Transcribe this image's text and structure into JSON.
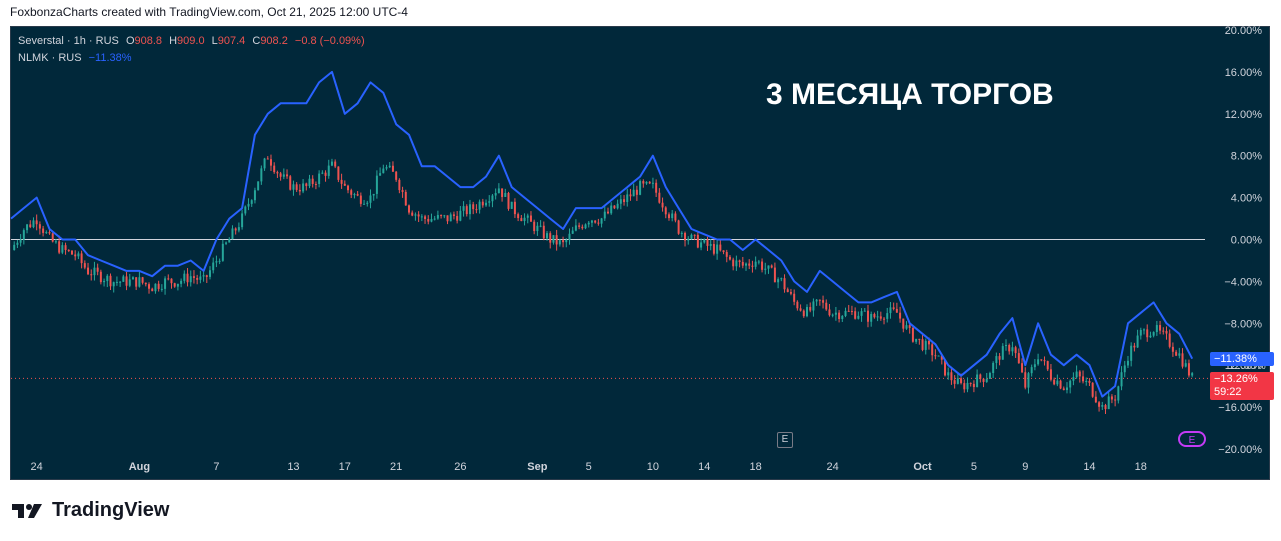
{
  "header": {
    "credit": "FoxbonzaCharts created with TradingView.com, Oct 21, 2025 12:00 UTC-4"
  },
  "legend": {
    "main_symbol": "Severstal · 1h · RUS",
    "o_label": "O",
    "o_value": "908.8",
    "h_label": "H",
    "h_value": "909.0",
    "l_label": "L",
    "l_value": "907.4",
    "c_label": "C",
    "c_value": "908.2",
    "change": "−0.8 (−0.09%)",
    "compare_symbol": "NLMK · RUS",
    "compare_value": "−11.38%"
  },
  "annotation": "3 МЕСЯЦА ТОРГОВ",
  "footer": {
    "brand": "TradingView"
  },
  "price_badges": {
    "compare": "−11.38%",
    "main": "−13.26%",
    "countdown": "59:22",
    "hidden_tick": "−12.00%"
  },
  "event_markers": [
    "E",
    "E"
  ],
  "colors": {
    "background": "#01283a",
    "nlmk_line": "#2962ff",
    "candle_up": "#26a69a",
    "candle_down": "#ef5350",
    "zero_line": "#d1d4dc"
  },
  "chart_data": {
    "type": "line",
    "title": "",
    "y_axis": {
      "unit": "%",
      "range": [
        -20,
        20
      ],
      "ticks": [
        20,
        16,
        12,
        8,
        4,
        0,
        -4,
        -8,
        -12,
        -16,
        -20
      ],
      "tick_labels": [
        "20.00%",
        "16.00%",
        "12.00%",
        "8.00%",
        "4.00%",
        "0.00%",
        "−4.00%",
        "−8.00%",
        "−12.00%",
        "−16.00%",
        "−20.00%"
      ]
    },
    "x_axis": {
      "range_days": [
        0,
        93
      ],
      "ticks": [
        {
          "day": 2,
          "label": "24"
        },
        {
          "day": 10,
          "label": "Aug"
        },
        {
          "day": 16,
          "label": "7"
        },
        {
          "day": 22,
          "label": "13"
        },
        {
          "day": 26,
          "label": "17"
        },
        {
          "day": 30,
          "label": "21"
        },
        {
          "day": 35,
          "label": "26"
        },
        {
          "day": 41,
          "label": "Sep"
        },
        {
          "day": 45,
          "label": "5"
        },
        {
          "day": 50,
          "label": "10"
        },
        {
          "day": 54,
          "label": "14"
        },
        {
          "day": 58,
          "label": "18"
        },
        {
          "day": 64,
          "label": "24"
        },
        {
          "day": 71,
          "label": "Oct"
        },
        {
          "day": 75,
          "label": "5"
        },
        {
          "day": 79,
          "label": "9"
        },
        {
          "day": 84,
          "label": "14"
        },
        {
          "day": 88,
          "label": "18"
        }
      ]
    },
    "grid": false,
    "series": [
      {
        "name": "NLMK · RUS",
        "style": "line",
        "points": [
          [
            0,
            2
          ],
          [
            1,
            3
          ],
          [
            2,
            4
          ],
          [
            3,
            1
          ],
          [
            4,
            0
          ],
          [
            5,
            0
          ],
          [
            6,
            -1.5
          ],
          [
            7,
            -2
          ],
          [
            8,
            -2.5
          ],
          [
            9,
            -3
          ],
          [
            10,
            -3
          ],
          [
            11,
            -3.5
          ],
          [
            12,
            -2.5
          ],
          [
            13,
            -2.5
          ],
          [
            14,
            -2
          ],
          [
            15,
            -3
          ],
          [
            16,
            0
          ],
          [
            17,
            2
          ],
          [
            18,
            3
          ],
          [
            19,
            10
          ],
          [
            20,
            12
          ],
          [
            21,
            13
          ],
          [
            22,
            13
          ],
          [
            23,
            13
          ],
          [
            24,
            15
          ],
          [
            25,
            16
          ],
          [
            26,
            12
          ],
          [
            27,
            13
          ],
          [
            28,
            15
          ],
          [
            29,
            14
          ],
          [
            30,
            11
          ],
          [
            31,
            10
          ],
          [
            32,
            7
          ],
          [
            33,
            7
          ],
          [
            34,
            6
          ],
          [
            35,
            5
          ],
          [
            36,
            5
          ],
          [
            37,
            6
          ],
          [
            38,
            8
          ],
          [
            39,
            5
          ],
          [
            40,
            4
          ],
          [
            41,
            3
          ],
          [
            42,
            2
          ],
          [
            43,
            1
          ],
          [
            44,
            3
          ],
          [
            45,
            3
          ],
          [
            46,
            3
          ],
          [
            47,
            4
          ],
          [
            48,
            5
          ],
          [
            49,
            6
          ],
          [
            50,
            8
          ],
          [
            51,
            5
          ],
          [
            52,
            3
          ],
          [
            53,
            1
          ],
          [
            54,
            0.5
          ],
          [
            55,
            0
          ],
          [
            56,
            0
          ],
          [
            57,
            -1
          ],
          [
            58,
            0
          ],
          [
            59,
            -1
          ],
          [
            60,
            -2
          ],
          [
            61,
            -4
          ],
          [
            62,
            -5
          ],
          [
            63,
            -3
          ],
          [
            64,
            -4
          ],
          [
            65,
            -5
          ],
          [
            66,
            -6
          ],
          [
            67,
            -6
          ],
          [
            68,
            -5.5
          ],
          [
            69,
            -5
          ],
          [
            70,
            -8
          ],
          [
            71,
            -9
          ],
          [
            72,
            -10
          ],
          [
            73,
            -12
          ],
          [
            74,
            -13
          ],
          [
            75,
            -12
          ],
          [
            76,
            -11
          ],
          [
            77,
            -9
          ],
          [
            78,
            -7.5
          ],
          [
            79,
            -12
          ],
          [
            80,
            -8
          ],
          [
            81,
            -11
          ],
          [
            82,
            -12
          ],
          [
            83,
            -11
          ],
          [
            84,
            -12
          ],
          [
            85,
            -15
          ],
          [
            86,
            -14
          ],
          [
            87,
            -8
          ],
          [
            88,
            -7
          ],
          [
            89,
            -6
          ],
          [
            90,
            -8
          ],
          [
            91,
            -9
          ],
          [
            92,
            -11.38
          ]
        ]
      },
      {
        "name": "Severstal · 1h · RUS",
        "style": "candles",
        "points": [
          [
            0,
            -1
          ],
          [
            1,
            1
          ],
          [
            2,
            2
          ],
          [
            3,
            0
          ],
          [
            4,
            -1
          ],
          [
            5,
            -1.5
          ],
          [
            6,
            -3
          ],
          [
            7,
            -3.5
          ],
          [
            8,
            -4
          ],
          [
            9,
            -4
          ],
          [
            10,
            -4
          ],
          [
            11,
            -4.5
          ],
          [
            12,
            -4
          ],
          [
            13,
            -4
          ],
          [
            14,
            -3.5
          ],
          [
            15,
            -4
          ],
          [
            16,
            -2
          ],
          [
            17,
            0
          ],
          [
            18,
            2
          ],
          [
            19,
            5
          ],
          [
            20,
            8
          ],
          [
            21,
            6
          ],
          [
            22,
            5
          ],
          [
            23,
            5
          ],
          [
            24,
            6
          ],
          [
            25,
            7
          ],
          [
            26,
            5
          ],
          [
            27,
            4
          ],
          [
            28,
            4
          ],
          [
            29,
            7
          ],
          [
            30,
            6
          ],
          [
            31,
            3
          ],
          [
            32,
            2
          ],
          [
            33,
            2
          ],
          [
            34,
            2
          ],
          [
            35,
            2.5
          ],
          [
            36,
            3
          ],
          [
            37,
            4
          ],
          [
            38,
            5
          ],
          [
            39,
            3
          ],
          [
            40,
            2
          ],
          [
            41,
            1
          ],
          [
            42,
            0
          ],
          [
            43,
            -0.5
          ],
          [
            44,
            1
          ],
          [
            45,
            2
          ],
          [
            46,
            2
          ],
          [
            47,
            3
          ],
          [
            48,
            4
          ],
          [
            49,
            5
          ],
          [
            50,
            5
          ],
          [
            51,
            3
          ],
          [
            52,
            1
          ],
          [
            53,
            0
          ],
          [
            54,
            -0.5
          ],
          [
            55,
            -1
          ],
          [
            56,
            -2
          ],
          [
            57,
            -2.5
          ],
          [
            58,
            -2
          ],
          [
            59,
            -3
          ],
          [
            60,
            -4
          ],
          [
            61,
            -6
          ],
          [
            62,
            -7
          ],
          [
            63,
            -6
          ],
          [
            64,
            -7
          ],
          [
            65,
            -7
          ],
          [
            66,
            -7
          ],
          [
            67,
            -7.5
          ],
          [
            68,
            -7
          ],
          [
            69,
            -7
          ],
          [
            70,
            -9
          ],
          [
            71,
            -10
          ],
          [
            72,
            -11
          ],
          [
            73,
            -13
          ],
          [
            74,
            -14
          ],
          [
            75,
            -13.5
          ],
          [
            76,
            -13
          ],
          [
            77,
            -11
          ],
          [
            78,
            -10
          ],
          [
            79,
            -14
          ],
          [
            80,
            -11
          ],
          [
            81,
            -13
          ],
          [
            82,
            -14
          ],
          [
            83,
            -13
          ],
          [
            84,
            -14
          ],
          [
            85,
            -16
          ],
          [
            86,
            -15
          ],
          [
            87,
            -11
          ],
          [
            88,
            -9
          ],
          [
            89,
            -8.5
          ],
          [
            90,
            -9.5
          ],
          [
            91,
            -11
          ],
          [
            92,
            -13.26
          ]
        ]
      }
    ]
  }
}
